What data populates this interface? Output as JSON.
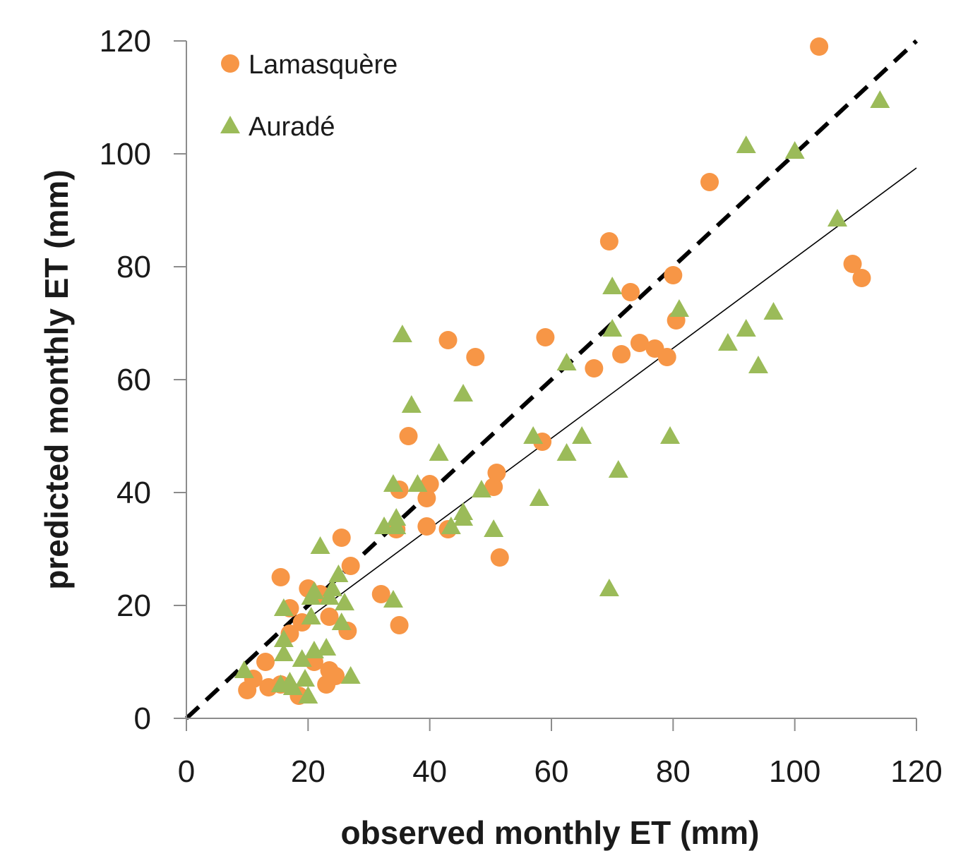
{
  "chart_data": {
    "type": "scatter",
    "xlabel": "observed monthly ET (mm)",
    "ylabel": "predicted monthly ET (mm)",
    "xlim": [
      0,
      120
    ],
    "ylim": [
      0,
      120
    ],
    "xticks": [
      0,
      20,
      40,
      60,
      80,
      100,
      120
    ],
    "yticks": [
      0,
      20,
      40,
      60,
      80,
      100,
      120
    ],
    "grid": false,
    "legend_position": "top-left",
    "series": [
      {
        "name": "Lamasquère",
        "marker": "circle",
        "color": "#F79646",
        "points": [
          [
            10,
            5
          ],
          [
            11,
            7
          ],
          [
            13,
            10
          ],
          [
            13.5,
            5.5
          ],
          [
            15.5,
            6
          ],
          [
            15.5,
            25
          ],
          [
            17,
            19.5
          ],
          [
            17,
            15
          ],
          [
            18.5,
            4
          ],
          [
            19,
            17
          ],
          [
            20,
            23
          ],
          [
            21,
            10
          ],
          [
            22,
            22
          ],
          [
            23,
            6
          ],
          [
            23.5,
            8.5
          ],
          [
            23.5,
            18
          ],
          [
            24.5,
            7.5
          ],
          [
            25.5,
            32
          ],
          [
            26.5,
            15.5
          ],
          [
            27,
            27
          ],
          [
            32,
            22
          ],
          [
            34.5,
            33.5
          ],
          [
            35,
            40.5
          ],
          [
            35,
            16.5
          ],
          [
            36.5,
            50
          ],
          [
            39.5,
            39
          ],
          [
            39.5,
            34
          ],
          [
            40,
            41.5
          ],
          [
            43,
            33.5
          ],
          [
            43,
            67
          ],
          [
            47.5,
            64
          ],
          [
            50.5,
            41
          ],
          [
            51,
            43.5
          ],
          [
            51.5,
            28.5
          ],
          [
            58.5,
            49
          ],
          [
            59,
            67.5
          ],
          [
            67,
            62
          ],
          [
            69.5,
            84.5
          ],
          [
            71.5,
            64.5
          ],
          [
            73,
            75.5
          ],
          [
            74.5,
            66.5
          ],
          [
            77,
            65.5
          ],
          [
            79,
            64
          ],
          [
            80,
            78.5
          ],
          [
            80.5,
            70.5
          ],
          [
            86,
            95
          ],
          [
            104,
            119
          ],
          [
            109.5,
            80.5
          ],
          [
            111,
            78
          ]
        ]
      },
      {
        "name": "Auradé",
        "marker": "triangle",
        "color": "#9BBB59",
        "points": [
          [
            9.5,
            8.5
          ],
          [
            15.5,
            6
          ],
          [
            16,
            19.5
          ],
          [
            16,
            14
          ],
          [
            16,
            11.5
          ],
          [
            17,
            6.5
          ],
          [
            17.5,
            5.5
          ],
          [
            19,
            10.5
          ],
          [
            19.5,
            7
          ],
          [
            20,
            4
          ],
          [
            20.5,
            21.5
          ],
          [
            20.5,
            18
          ],
          [
            21,
            22.5
          ],
          [
            21,
            12
          ],
          [
            22,
            30.5
          ],
          [
            23,
            12.5
          ],
          [
            23.5,
            21.5
          ],
          [
            24,
            23
          ],
          [
            25,
            25.5
          ],
          [
            25.5,
            17
          ],
          [
            26,
            20.5
          ],
          [
            27,
            7.5
          ],
          [
            32.5,
            34
          ],
          [
            34,
            41.5
          ],
          [
            34,
            21
          ],
          [
            34.5,
            35.5
          ],
          [
            34.5,
            34
          ],
          [
            35.5,
            68
          ],
          [
            37,
            55.5
          ],
          [
            38,
            41.5
          ],
          [
            41.5,
            47
          ],
          [
            43.5,
            34
          ],
          [
            45.5,
            57.5
          ],
          [
            45.5,
            36.5
          ],
          [
            45.5,
            35.5
          ],
          [
            48.5,
            40.5
          ],
          [
            50.5,
            33.5
          ],
          [
            57,
            50
          ],
          [
            58,
            39
          ],
          [
            62.5,
            63
          ],
          [
            62.5,
            47
          ],
          [
            65,
            50
          ],
          [
            69.5,
            23
          ],
          [
            70,
            76.5
          ],
          [
            70,
            69
          ],
          [
            71,
            44
          ],
          [
            79.5,
            50
          ],
          [
            81,
            72.5
          ],
          [
            89,
            66.5
          ],
          [
            92,
            69
          ],
          [
            92,
            101.5
          ],
          [
            94,
            62.5
          ],
          [
            96.5,
            72
          ],
          [
            100,
            100.5
          ],
          [
            107,
            88.5
          ],
          [
            114,
            109.5
          ]
        ]
      }
    ],
    "lines": [
      {
        "name": "1:1",
        "style": "dashed",
        "color": "#000000",
        "x": [
          0,
          120
        ],
        "y": [
          0,
          120
        ]
      },
      {
        "name": "fit",
        "style": "solid",
        "color": "#000000",
        "x": [
          16,
          120
        ],
        "y": [
          14.5,
          97.5
        ]
      }
    ]
  }
}
